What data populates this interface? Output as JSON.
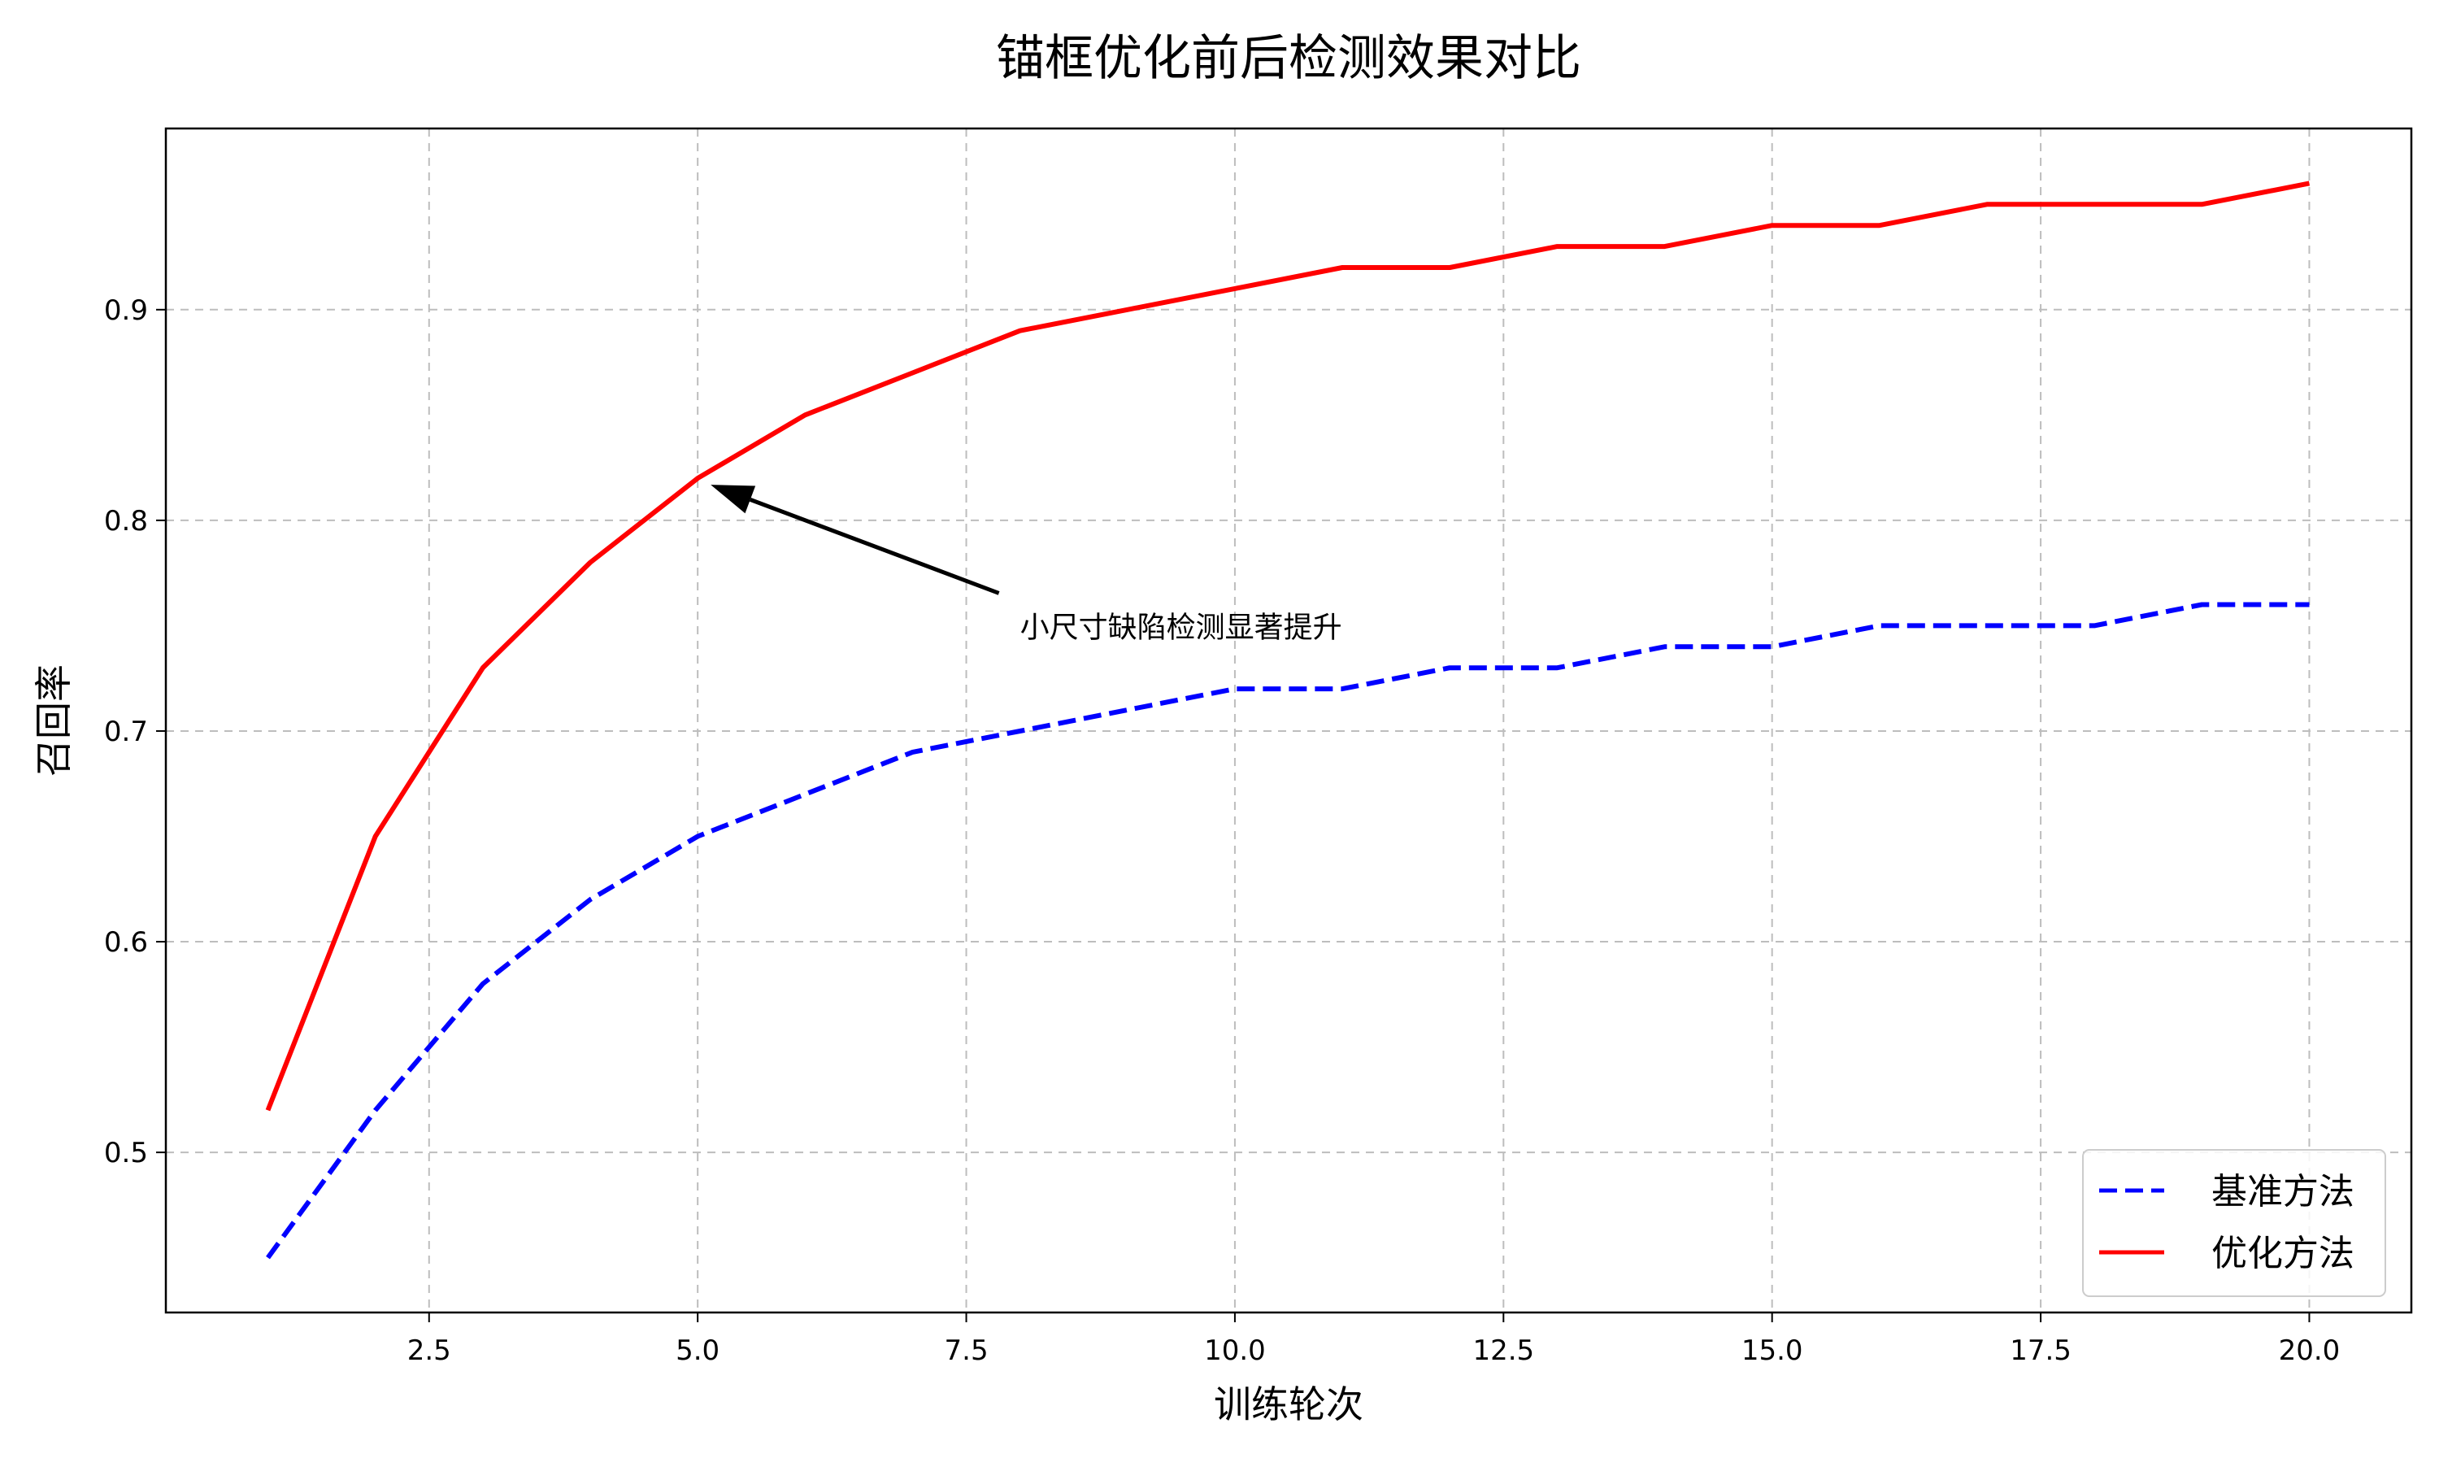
{
  "chart_data": {
    "type": "line",
    "title": "锚框优化前后检测效果对比",
    "xlabel": "训练轮次",
    "ylabel": "召回率",
    "x": [
      1,
      2,
      3,
      4,
      5,
      6,
      7,
      8,
      9,
      10,
      11,
      12,
      13,
      14,
      15,
      16,
      17,
      18,
      19,
      20
    ],
    "xlim": [
      0.05,
      20.95
    ],
    "ylim": [
      0.424,
      0.986
    ],
    "xticks": [
      "2.5",
      "5.0",
      "7.5",
      "10.0",
      "12.5",
      "15.0",
      "17.5",
      "20.0"
    ],
    "yticks": [
      "0.5",
      "0.6",
      "0.7",
      "0.8",
      "0.9"
    ],
    "grid": true,
    "legend_position": "lower-right",
    "series": [
      {
        "name": "基准方法",
        "color": "#0000ff",
        "line_style": "dashed",
        "values": [
          0.45,
          0.52,
          0.58,
          0.62,
          0.65,
          0.67,
          0.69,
          0.7,
          0.71,
          0.72,
          0.72,
          0.73,
          0.73,
          0.74,
          0.74,
          0.75,
          0.75,
          0.75,
          0.76,
          0.76
        ]
      },
      {
        "name": "优化方法",
        "color": "#ff0000",
        "line_style": "solid",
        "values": [
          0.52,
          0.65,
          0.73,
          0.78,
          0.82,
          0.85,
          0.87,
          0.89,
          0.9,
          0.91,
          0.92,
          0.92,
          0.93,
          0.93,
          0.94,
          0.94,
          0.95,
          0.95,
          0.95,
          0.96
        ]
      }
    ],
    "annotations": [
      {
        "text": "小尺寸缺陷检测显著提升",
        "point": [
          5,
          0.82
        ],
        "text_anchor": [
          8,
          0.75
        ]
      }
    ]
  }
}
